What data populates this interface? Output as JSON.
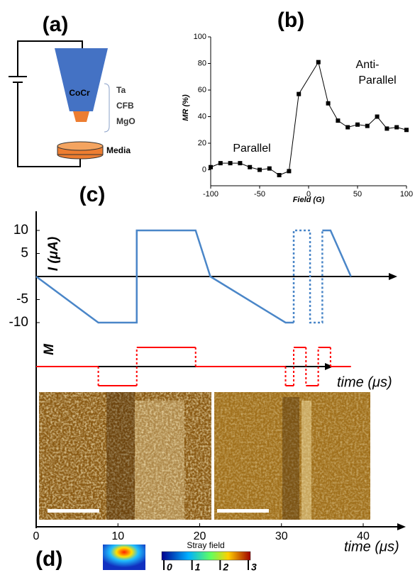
{
  "panel_a": {
    "title": "(a)",
    "tip": "CoCr",
    "layers": [
      "Ta",
      "CFB",
      "MgO"
    ],
    "media": "Media"
  },
  "chart_data": [
    {
      "type": "line",
      "title": "(b)",
      "xlabel": "Field (G)",
      "ylabel": "MR (%)",
      "x": [
        -100,
        -90,
        -80,
        -70,
        -60,
        -50,
        -40,
        -30,
        -20,
        -10,
        10,
        20,
        30,
        40,
        50,
        60,
        70,
        80,
        90,
        100
      ],
      "values": [
        2,
        5,
        5,
        5,
        2,
        0,
        1,
        -4,
        -1,
        57,
        81,
        50,
        37,
        32,
        34,
        33,
        40,
        31,
        32,
        30
      ],
      "color": "#000000",
      "xlim": [
        -100,
        100
      ],
      "ylim": [
        -12,
        100
      ],
      "xticks": [
        -100,
        -50,
        0,
        50,
        100
      ],
      "yticks": [
        0,
        20,
        40,
        60,
        80,
        100
      ],
      "annotations": [
        "Parallel",
        "Anti-Parallel"
      ]
    },
    {
      "type": "line",
      "title": "(c)",
      "ylabel": "I (μA)",
      "xlim": [
        0,
        40
      ],
      "ylim": [
        -12,
        14
      ],
      "yticks": [
        10,
        5,
        -5,
        -10
      ],
      "series": [
        {
          "color": "#4a86c8",
          "style": "solid",
          "x": [
            0,
            7.6,
            12.3,
            12.3,
            19.5,
            21.3,
            30.5,
            31.5
          ],
          "values": [
            0,
            -10,
            -10,
            10,
            10,
            0,
            -10,
            -10
          ]
        },
        {
          "color": "#4a86c8",
          "style": "dotted",
          "x": [
            31.5,
            31.5,
            33.5,
            33.5,
            35,
            35
          ],
          "values": [
            -10,
            10,
            10,
            -10,
            -10,
            10
          ]
        },
        {
          "color": "#4a86c8",
          "style": "solid",
          "x": [
            35,
            36,
            38.5
          ],
          "values": [
            10,
            10,
            0
          ]
        }
      ]
    },
    {
      "type": "step",
      "ylabel": "M",
      "xlabel": "time (μs)",
      "xlim": [
        0,
        40
      ],
      "ylim": [
        -1.5,
        1.5
      ],
      "series": [
        {
          "color": "#ff0000",
          "x": [
            0,
            7.6,
            7.6,
            12.3,
            12.3,
            19.5,
            19.5,
            30.5,
            30.5,
            31.5,
            31.5,
            33,
            33,
            34.5,
            34.5,
            36,
            36,
            38.5
          ],
          "values": [
            0,
            0,
            -1,
            -1,
            1,
            1,
            0,
            0,
            -1,
            -1,
            1,
            1,
            -1,
            -1,
            1,
            1,
            0,
            0
          ]
        }
      ]
    },
    {
      "type": "axis",
      "title": "(d)",
      "xlabel": "time (μs)",
      "xlim": [
        0,
        40
      ],
      "xticks": [
        0,
        10,
        20,
        30,
        40
      ]
    },
    {
      "type": "colorbar",
      "label": "Stray field",
      "lim": [
        0,
        3
      ],
      "ticks": [
        0,
        1,
        2,
        3
      ]
    }
  ]
}
